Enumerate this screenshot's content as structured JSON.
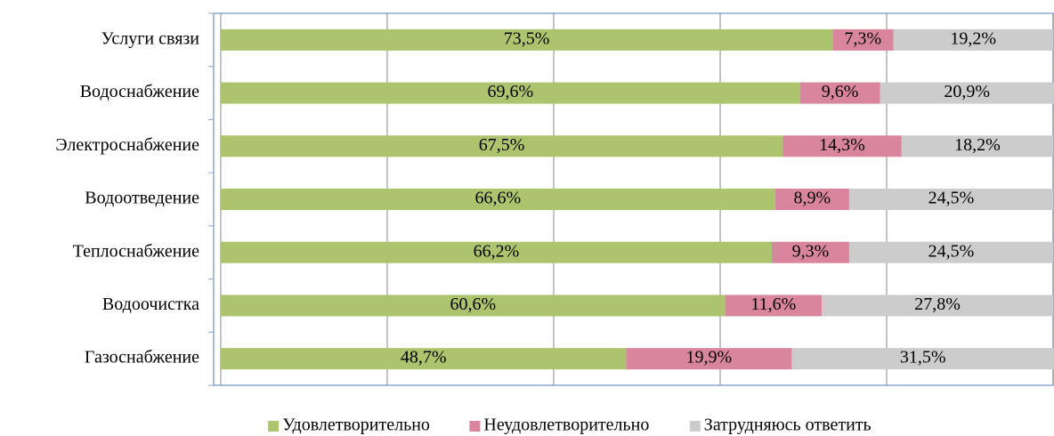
{
  "chart_data": {
    "type": "stacked-barh",
    "categories": [
      "Услуги связи",
      "Водоснабжение",
      "Электроснабжение",
      "Водоотведение",
      "Теплоснабжение",
      "Водоочистка",
      "Газоснабжение"
    ],
    "series": [
      {
        "name": "Удовлетворительно",
        "color": "#acc46e",
        "values": [
          73.5,
          69.6,
          67.5,
          66.6,
          66.2,
          60.6,
          48.7
        ],
        "value_labels": [
          "73,5%",
          "69,6%",
          "67,5%",
          "66,6%",
          "66,2%",
          "60,6%",
          "48,7%"
        ]
      },
      {
        "name": "Неудовлетворительно",
        "color": "#d8859d",
        "values": [
          7.3,
          9.6,
          14.3,
          8.9,
          9.3,
          11.6,
          19.9
        ],
        "value_labels": [
          "7,3%",
          "9,6%",
          "14,3%",
          "8,9%",
          "9,3%",
          "11,6%",
          "19,9%"
        ]
      },
      {
        "name": "Затрудняюсь ответить",
        "color": "#cccccc",
        "values": [
          19.2,
          20.9,
          18.2,
          24.5,
          24.5,
          27.8,
          31.5
        ],
        "value_labels": [
          "19,2%",
          "20,9%",
          "18,2%",
          "24,5%",
          "24,5%",
          "27,8%",
          "31,5%"
        ]
      }
    ],
    "xlim": [
      0,
      100
    ],
    "xticks": [
      0,
      20,
      40,
      60,
      80,
      100
    ],
    "grid": true,
    "legend": "bottom"
  }
}
